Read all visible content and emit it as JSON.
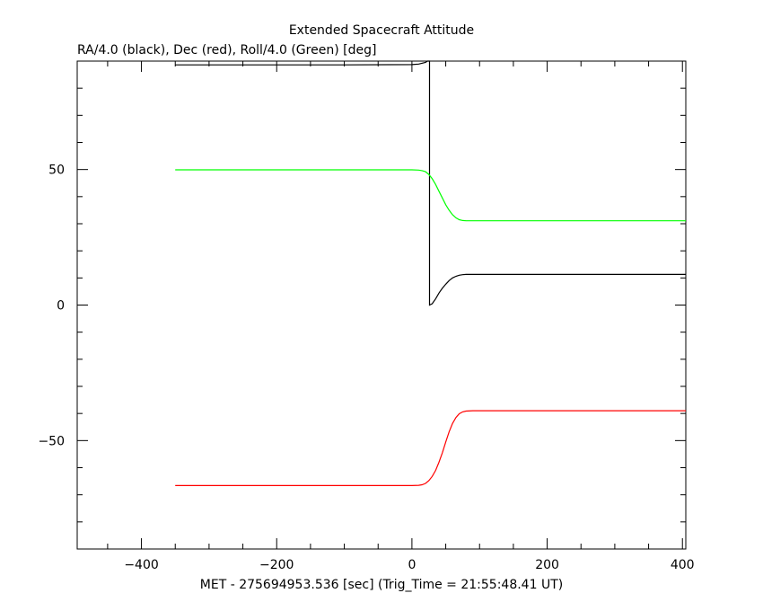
{
  "chart_data": {
    "type": "line",
    "title": "Extended Spacecraft Attitude",
    "ylabel": "RA/4.0 (black), Dec (red), Roll/4.0 (Green) [deg]",
    "xlabel": "MET - 275694953.536 [sec] (Trig_Time = 21:55:48.41 UT)",
    "xlim": [
      -495,
      405
    ],
    "ylim": [
      -90,
      90
    ],
    "x_ticks": [
      -400,
      -200,
      0,
      200,
      400
    ],
    "x_tick_labels": [
      "−400",
      "−200",
      "0",
      "200",
      "400"
    ],
    "y_ticks": [
      -50,
      0,
      50
    ],
    "y_tick_labels": [
      "−50",
      "0",
      "50"
    ],
    "grid": false,
    "series": [
      {
        "color": "#000000",
        "x": [
          -350,
          -100,
          0,
          10,
          20,
          23,
          26,
          26,
          30,
          35,
          40,
          45,
          50,
          55,
          60,
          65,
          70,
          75,
          80,
          100,
          200,
          300,
          405
        ],
        "y": [
          88.6,
          88.6,
          88.7,
          88.9,
          89.5,
          90,
          90,
          0,
          0.5,
          2.3,
          4.4,
          6.2,
          7.7,
          9.0,
          10.0,
          10.6,
          11.0,
          11.2,
          11.3,
          11.3,
          11.3,
          11.3,
          11.3
        ]
      },
      {
        "color": "#ff0000",
        "x": [
          -350,
          -100,
          0,
          10,
          15,
          20,
          25,
          30,
          35,
          40,
          45,
          50,
          55,
          60,
          65,
          70,
          75,
          80,
          90,
          100,
          200,
          300,
          405
        ],
        "y": [
          -66.6,
          -66.6,
          -66.6,
          -66.5,
          -66.3,
          -65.8,
          -64.8,
          -63.2,
          -61.0,
          -58.0,
          -54.5,
          -50.5,
          -46.8,
          -43.7,
          -41.5,
          -40.1,
          -39.4,
          -39.1,
          -39.0,
          -39.0,
          -39.0,
          -39.0,
          -39.0
        ]
      },
      {
        "color": "#00ff00",
        "x": [
          -350,
          -100,
          0,
          10,
          15,
          20,
          25,
          30,
          35,
          40,
          45,
          50,
          55,
          60,
          65,
          70,
          75,
          80,
          100,
          200,
          300,
          405
        ],
        "y": [
          49.9,
          49.9,
          49.9,
          49.8,
          49.6,
          49.2,
          48.2,
          46.6,
          44.5,
          42.0,
          39.5,
          37.0,
          35.0,
          33.3,
          32.2,
          31.5,
          31.2,
          31.1,
          31.1,
          31.1,
          31.1,
          31.1
        ]
      }
    ]
  }
}
